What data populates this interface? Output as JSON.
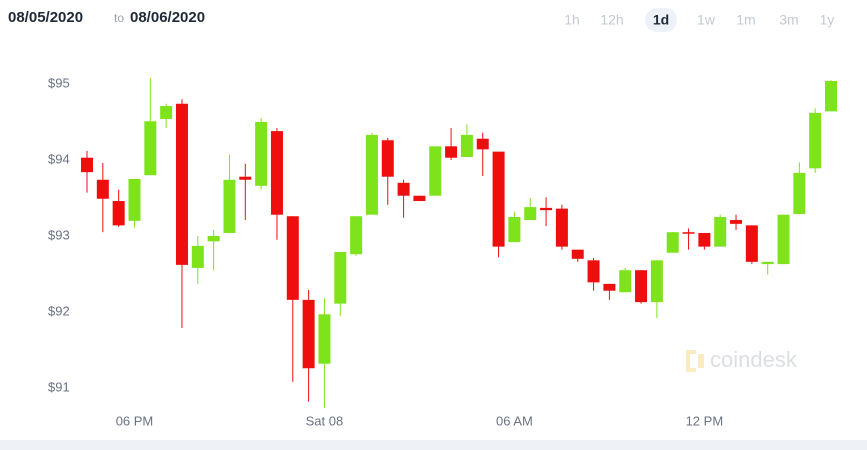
{
  "header": {
    "from": "08/05/2020",
    "to_word": "to",
    "to": "08/06/2020"
  },
  "range_buttons": [
    "1h",
    "12h",
    "1d",
    "1w",
    "1m",
    "3m",
    "1y"
  ],
  "selected_range": "1d",
  "chart_data": {
    "type": "candlestick",
    "watermark": "coindesk",
    "categories": [
      null,
      null,
      null,
      "06 PM",
      null,
      null,
      null,
      null,
      null,
      null,
      null,
      null,
      null,
      null,
      null,
      "Sat 08",
      null,
      null,
      null,
      null,
      null,
      null,
      null,
      null,
      null,
      null,
      null,
      "06 AM",
      null,
      null,
      null,
      null,
      null,
      null,
      null,
      null,
      null,
      null,
      null,
      "12 PM",
      null,
      null,
      null,
      null,
      null,
      null,
      null,
      null
    ],
    "open": [
      94.03,
      93.74,
      93.46,
      93.2,
      93.8,
      94.54,
      94.74,
      92.58,
      92.93,
      93.04,
      93.78,
      93.66,
      94.38,
      93.26,
      92.16,
      91.32,
      92.11,
      92.76,
      93.28,
      94.26,
      93.7,
      93.53,
      93.53,
      94.18,
      94.04,
      94.28,
      94.11,
      92.92,
      93.21,
      93.37,
      93.36,
      92.82,
      92.68,
      92.37,
      92.26,
      92.55,
      92.13,
      92.78,
      93.05,
      93.04,
      92.86,
      93.21,
      93.14,
      92.63,
      92.63,
      93.29,
      93.89,
      94.64
    ],
    "high": [
      94.12,
      93.96,
      93.61,
      93.75,
      95.08,
      94.74,
      94.8,
      93.0,
      93.08,
      94.07,
      93.95,
      94.55,
      94.42,
      93.26,
      92.29,
      92.18,
      92.79,
      93.26,
      94.36,
      94.29,
      93.74,
      93.53,
      94.18,
      94.42,
      94.47,
      94.36,
      94.11,
      93.32,
      93.5,
      93.51,
      93.41,
      92.82,
      92.71,
      92.37,
      92.58,
      92.55,
      92.68,
      93.05,
      93.1,
      93.04,
      93.28,
      93.28,
      93.14,
      92.66,
      93.28,
      93.97,
      94.68,
      95.05
    ],
    "low": [
      93.57,
      93.05,
      93.12,
      93.11,
      93.8,
      94.42,
      91.79,
      92.37,
      92.55,
      93.04,
      93.21,
      93.61,
      92.95,
      91.08,
      90.82,
      90.74,
      91.95,
      92.74,
      93.28,
      93.41,
      93.24,
      93.46,
      93.53,
      94.0,
      94.04,
      93.79,
      92.72,
      92.92,
      93.21,
      93.13,
      92.82,
      92.66,
      92.28,
      92.16,
      92.26,
      92.11,
      91.92,
      92.78,
      92.82,
      92.82,
      92.86,
      93.08,
      92.63,
      92.49,
      92.63,
      93.29,
      93.83,
      94.64
    ],
    "close": [
      93.84,
      93.49,
      93.14,
      93.75,
      94.51,
      94.71,
      92.62,
      92.87,
      93.0,
      93.74,
      93.74,
      94.5,
      93.28,
      92.16,
      91.26,
      91.97,
      92.79,
      93.26,
      94.33,
      93.78,
      93.53,
      93.46,
      94.18,
      94.03,
      94.33,
      94.14,
      92.86,
      93.25,
      93.38,
      93.34,
      92.86,
      92.7,
      92.39,
      92.28,
      92.55,
      92.13,
      92.68,
      93.05,
      93.03,
      92.86,
      93.25,
      93.16,
      92.66,
      92.66,
      93.28,
      93.83,
      94.62,
      95.04
    ],
    "up_color": "#7ee31b",
    "down_color": "#ef0e0e",
    "ylim": [
      90.7,
      95.3
    ],
    "yticks": [
      {
        "value": 91,
        "label": "$91"
      },
      {
        "value": 92,
        "label": "$92"
      },
      {
        "value": 93,
        "label": "$93"
      },
      {
        "value": 94,
        "label": "$94"
      },
      {
        "value": 95,
        "label": "$95"
      }
    ],
    "grid": false
  }
}
